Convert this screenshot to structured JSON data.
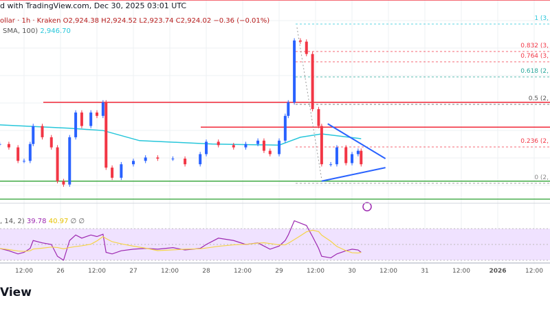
{
  "header": {
    "title": "d with TradingView.com, Dec 30, 2025 03:01 UTC"
  },
  "legend": {
    "ohlc": "ollar · 1h · Kraken  O2,924.38  H2,924.52  L2,923.74  C2,924.02  −0.36 (−0.01%)",
    "sma_label": "SMA, 100)",
    "sma_value": "2,946.70",
    "rsi_label": ", 14, 2)",
    "rsi_value": "39.78",
    "rsi_ma_value": "40.97",
    "rsi_extra": "∅ ∅"
  },
  "logo": "View",
  "colors": {
    "up": "#2962ff",
    "down": "#f23645",
    "sma": "#26c6da",
    "rsi": "#9c27b0",
    "rsi_ma": "#f5d447",
    "rsi_band": "#f0e2ff",
    "resistance": "#f23645",
    "support": "#4caf50"
  },
  "chart_data": {
    "type": "candlestick",
    "ylim": [
      2893,
      3070
    ],
    "x_ticks": [
      "12:00",
      "26",
      "12:00",
      "27",
      "12:00",
      "28",
      "12:00",
      "29",
      "12:00",
      "30",
      "12:00",
      "31",
      "12:00",
      "2026",
      "12:00"
    ],
    "closes": [
      [
        "2025-12-25T04:00",
        2942
      ],
      [
        "2025-12-25T07:00",
        2939
      ],
      [
        "2025-12-25T10:00",
        2927
      ],
      [
        "2025-12-25T12:00",
        2927
      ],
      [
        "2025-12-25T14:00",
        2942
      ],
      [
        "2025-12-25T15:00",
        2958
      ],
      [
        "2025-12-25T18:00",
        2948
      ],
      [
        "2025-12-25T21:00",
        2939
      ],
      [
        "2025-12-25T23:00",
        2909
      ],
      [
        "2025-12-26T01:00",
        2906
      ],
      [
        "2025-12-26T03:00",
        2948
      ],
      [
        "2025-12-26T05:00",
        2970
      ],
      [
        "2025-12-26T07:00",
        2958
      ],
      [
        "2025-12-26T10:00",
        2970
      ],
      [
        "2025-12-26T12:00",
        2967
      ],
      [
        "2025-12-26T14:00",
        2979
      ],
      [
        "2025-12-26T15:00",
        2921
      ],
      [
        "2025-12-26T17:00",
        2912
      ],
      [
        "2025-12-26T20:00",
        2924
      ],
      [
        "2025-12-27T00:00",
        2927
      ],
      [
        "2025-12-27T04:00",
        2930
      ],
      [
        "2025-12-27T08:00",
        2929
      ],
      [
        "2025-12-27T13:00",
        2929
      ],
      [
        "2025-12-27T17:00",
        2924
      ],
      [
        "2025-12-27T22:00",
        2933
      ],
      [
        "2025-12-28T00:00",
        2944
      ],
      [
        "2025-12-28T04:00",
        2941
      ],
      [
        "2025-12-28T09:00",
        2939
      ],
      [
        "2025-12-28T13:00",
        2942
      ],
      [
        "2025-12-28T17:00",
        2945
      ],
      [
        "2025-12-28T19:00",
        2936
      ],
      [
        "2025-12-28T21:00",
        2933
      ],
      [
        "2025-12-29T00:00",
        2945
      ],
      [
        "2025-12-29T02:00",
        2967
      ],
      [
        "2025-12-29T03:00",
        2979
      ],
      [
        "2025-12-29T05:00",
        3034
      ],
      [
        "2025-12-29T07:00",
        3033
      ],
      [
        "2025-12-29T09:00",
        3022
      ],
      [
        "2025-12-29T11:00",
        2973
      ],
      [
        "2025-12-29T13:00",
        2958
      ],
      [
        "2025-12-29T14:00",
        2924
      ],
      [
        "2025-12-29T17:00",
        2924
      ],
      [
        "2025-12-29T19:00",
        2939
      ],
      [
        "2025-12-29T22:00",
        2925
      ],
      [
        "2025-12-30T00:00",
        2933
      ],
      [
        "2025-12-30T02:00",
        2936
      ],
      [
        "2025-12-30T03:00",
        2924
      ]
    ],
    "sma100": [
      [
        "2025-12-25T04:00",
        2959
      ],
      [
        "2025-12-26T03:00",
        2956
      ],
      [
        "2025-12-26T14:00",
        2954
      ],
      [
        "2025-12-27T02:00",
        2945
      ],
      [
        "2025-12-28T02:00",
        2942
      ],
      [
        "2025-12-29T00:00",
        2941
      ],
      [
        "2025-12-29T07:00",
        2948
      ],
      [
        "2025-12-29T14:00",
        2951
      ],
      [
        "2025-12-30T03:00",
        2946.7
      ]
    ],
    "rsi": [
      45,
      42,
      38,
      40,
      45,
      55,
      52,
      50,
      35,
      30,
      55,
      62,
      58,
      62,
      60,
      63,
      40,
      38,
      42,
      44,
      45,
      44,
      46,
      43,
      45,
      50,
      58,
      55,
      50,
      52,
      48,
      44,
      48,
      55,
      62,
      80,
      77,
      74,
      60,
      45,
      35,
      33,
      38,
      42,
      44,
      43,
      40
    ],
    "horizontal_levels": [
      {
        "price": 3070,
        "kind": "resistance"
      },
      {
        "price": 2979,
        "kind": "resistance"
      },
      {
        "price": 2957,
        "kind": "resistance"
      },
      {
        "price": 2909,
        "kind": "support"
      },
      {
        "price": 2893,
        "kind": "support"
      }
    ],
    "triangle": {
      "upper": [
        [
          "2025-12-29T16:00",
          2960
        ],
        [
          "2025-12-30T11:00",
          2929
        ]
      ],
      "lower": [
        [
          "2025-12-29T14:00",
          2909
        ],
        [
          "2025-12-30T11:00",
          2921
        ]
      ]
    },
    "fib_levels": [
      {
        "label": "1 (3,",
        "color": "#26c6da"
      },
      {
        "label": "0.832 (3,",
        "color": "#f23645"
      },
      {
        "label": "0.764 (3,",
        "color": "#f23645"
      },
      {
        "label": "0.618 (2,",
        "color": "#26a69a"
      },
      {
        "label": "0.5 (2,",
        "color": "#555555"
      },
      {
        "label": "0.236 (2,",
        "color": "#f23645"
      },
      {
        "label": "0 (2,",
        "color": "#888888"
      }
    ],
    "fib_range": [
      2908,
      3067
    ]
  }
}
